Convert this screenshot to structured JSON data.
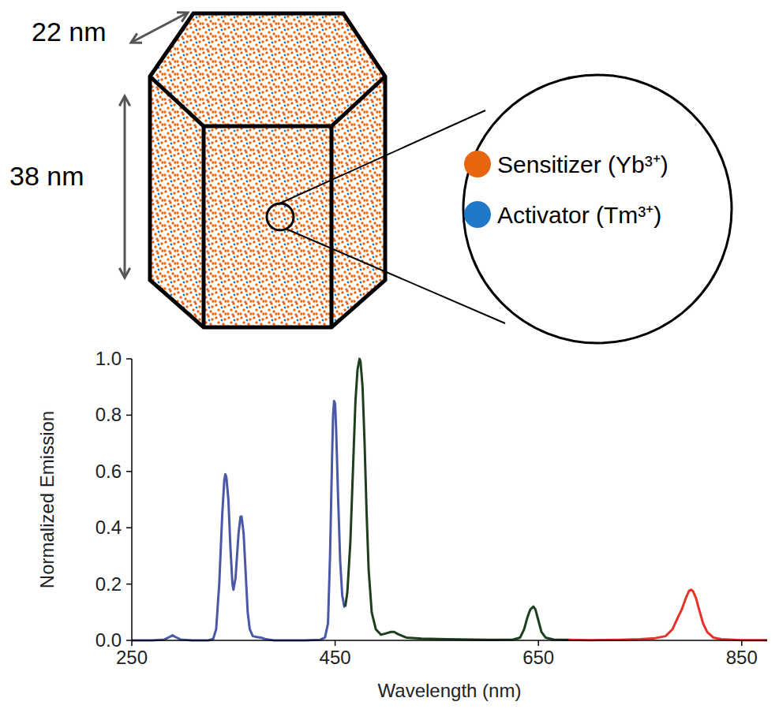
{
  "diagram": {
    "width_label": "22 nm",
    "height_label": "38 nm",
    "legend": [
      {
        "label": "Sensitizer (Yb³⁺)",
        "color": "#e8650f"
      },
      {
        "label": "Activator (Tm³⁺)",
        "color": "#1f78c8"
      }
    ]
  },
  "chart_data": {
    "type": "line",
    "x_label": "Wavelength (nm)",
    "y_label": "Normalized Emission",
    "xlim": [
      250,
      875
    ],
    "ylim": [
      0,
      1.0
    ],
    "xticks": [
      250,
      450,
      650,
      850
    ],
    "yticks": [
      {
        "value": 0,
        "label": "0.0"
      },
      0.2,
      0.4,
      0.6,
      0.8,
      {
        "value": 1.0,
        "label": "1.0"
      }
    ],
    "grid": false,
    "series": [
      {
        "color": "#4a58a8",
        "x": [
          250,
          270,
          282,
          287,
          290,
          293,
          298,
          310,
          325,
          330,
          333,
          336,
          339,
          341,
          342,
          343,
          345,
          347,
          349,
          350,
          352,
          355,
          357,
          358,
          360,
          362,
          364,
          366,
          369,
          373,
          377,
          382,
          390,
          420,
          435,
          440,
          443,
          445,
          447,
          448,
          449,
          450,
          451,
          453,
          455,
          457,
          459,
          460
        ],
        "values": [
          0,
          0,
          0.003,
          0.012,
          0.018,
          0.012,
          0.003,
          0,
          0,
          0.005,
          0.04,
          0.2,
          0.45,
          0.57,
          0.59,
          0.58,
          0.5,
          0.33,
          0.2,
          0.18,
          0.22,
          0.38,
          0.44,
          0.44,
          0.38,
          0.24,
          0.1,
          0.04,
          0.015,
          0.012,
          0.01,
          0.004,
          0,
          0,
          0.002,
          0.01,
          0.06,
          0.3,
          0.65,
          0.8,
          0.85,
          0.84,
          0.75,
          0.5,
          0.28,
          0.16,
          0.12,
          0.12
        ]
      },
      {
        "color": "#1e3f1e",
        "x": [
          460,
          462,
          465,
          468,
          470,
          472,
          474,
          475,
          477,
          479,
          481,
          483,
          486,
          490,
          495,
          500,
          505,
          508,
          512,
          520,
          535,
          560,
          600,
          625,
          632,
          636,
          639,
          642,
          645,
          647,
          650,
          653,
          657,
          665,
          680
        ],
        "values": [
          0.12,
          0.17,
          0.35,
          0.65,
          0.85,
          0.96,
          1.0,
          0.99,
          0.9,
          0.7,
          0.45,
          0.25,
          0.1,
          0.04,
          0.02,
          0.025,
          0.03,
          0.03,
          0.022,
          0.01,
          0.006,
          0.004,
          0.002,
          0.003,
          0.01,
          0.04,
          0.08,
          0.11,
          0.12,
          0.11,
          0.07,
          0.03,
          0.01,
          0.003,
          0.002
        ]
      },
      {
        "color": "#e8302a",
        "x": [
          680,
          700,
          730,
          750,
          765,
          775,
          782,
          787,
          791,
          795,
          798,
          800,
          802,
          805,
          808,
          812,
          816,
          822,
          830,
          850,
          875
        ],
        "values": [
          0.002,
          0.001,
          0.002,
          0.004,
          0.008,
          0.015,
          0.04,
          0.08,
          0.11,
          0.15,
          0.175,
          0.18,
          0.175,
          0.15,
          0.11,
          0.06,
          0.03,
          0.01,
          0.004,
          0.001,
          0.001
        ]
      }
    ]
  }
}
